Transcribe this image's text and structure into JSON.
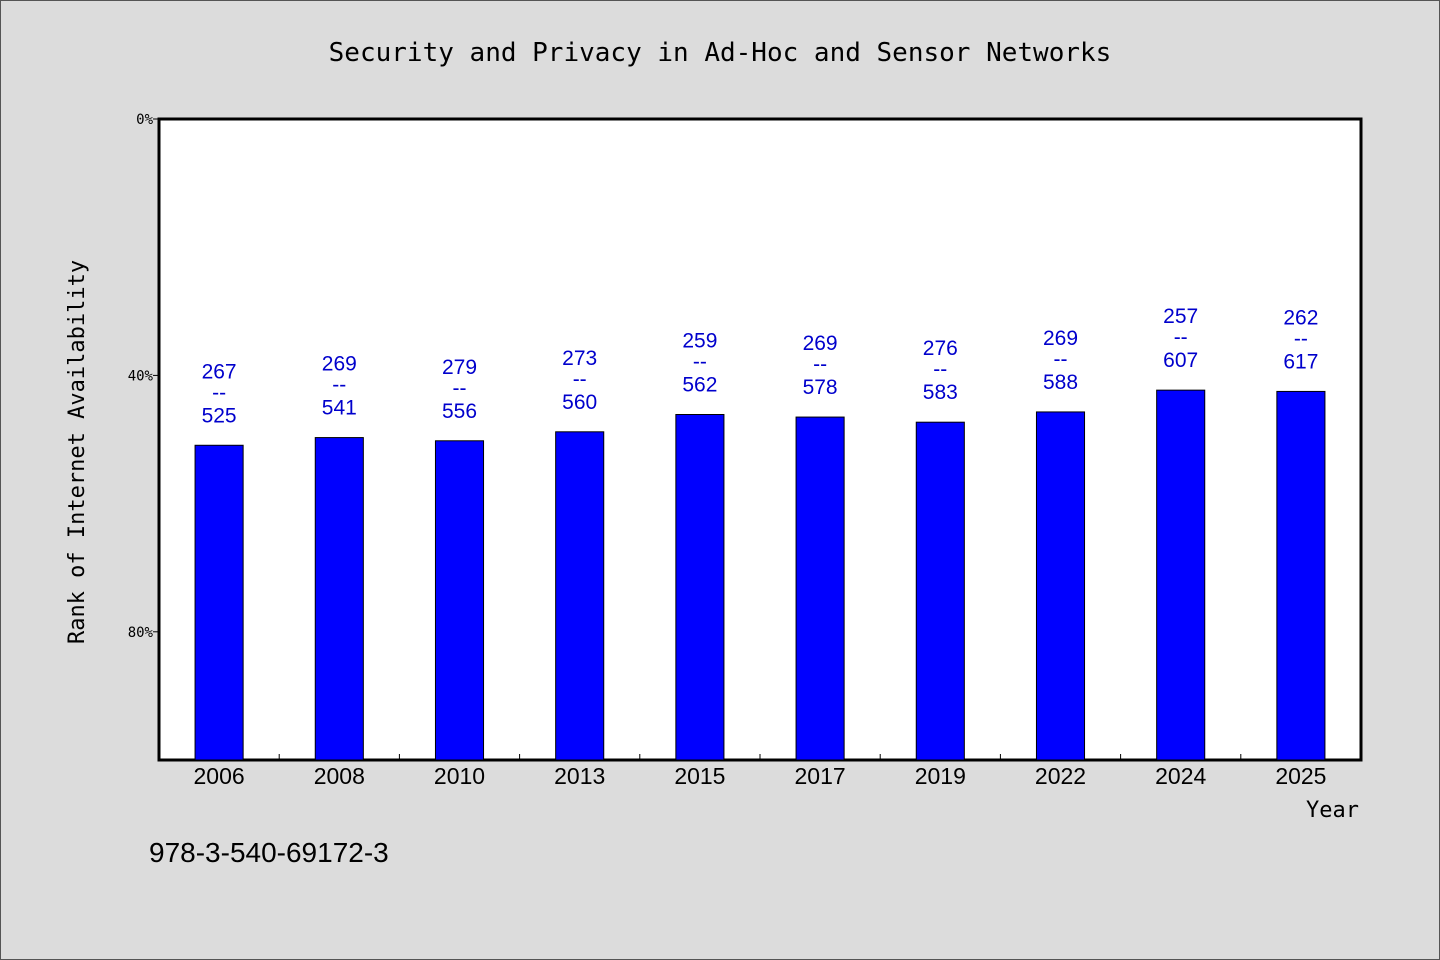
{
  "chart_data": {
    "type": "bar",
    "title": "Security and Privacy in Ad-Hoc and Sensor Networks",
    "xlabel": "Year",
    "ylabel": "Rank of Internet Availability",
    "categories": [
      "2006",
      "2008",
      "2010",
      "2013",
      "2015",
      "2017",
      "2019",
      "2022",
      "2024",
      "2025"
    ],
    "values": [
      0.509,
      0.497,
      0.502,
      0.488,
      0.461,
      0.465,
      0.473,
      0.457,
      0.423,
      0.425
    ],
    "data_labels": [
      {
        "top": "267",
        "sep": "--",
        "bottom": "525"
      },
      {
        "top": "269",
        "sep": "--",
        "bottom": "541"
      },
      {
        "top": "279",
        "sep": "--",
        "bottom": "556"
      },
      {
        "top": "273",
        "sep": "--",
        "bottom": "560"
      },
      {
        "top": "259",
        "sep": "--",
        "bottom": "562"
      },
      {
        "top": "269",
        "sep": "--",
        "bottom": "578"
      },
      {
        "top": "276",
        "sep": "--",
        "bottom": "583"
      },
      {
        "top": "269",
        "sep": "--",
        "bottom": "588"
      },
      {
        "top": "257",
        "sep": "--",
        "bottom": "607"
      },
      {
        "top": "262",
        "sep": "--",
        "bottom": "617"
      }
    ],
    "y_ticks": [
      {
        "value": 0,
        "label": "0%"
      },
      {
        "value": 0.4,
        "label": "40%"
      },
      {
        "value": 0.8,
        "label": "80%"
      }
    ],
    "ylim": [
      0,
      1
    ],
    "y_inverted": true,
    "bar_color": "#0000ff",
    "label_color": "#0000cc",
    "grid": false,
    "legend": "none"
  },
  "footer": {
    "isbn": "978-3-540-69172-3"
  }
}
